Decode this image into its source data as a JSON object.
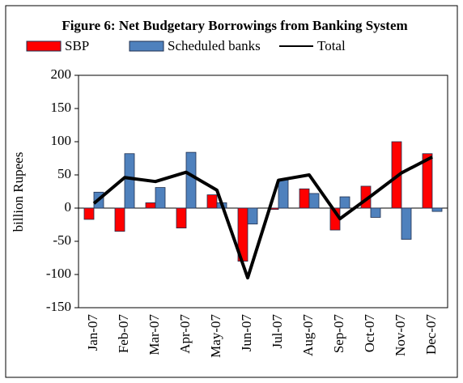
{
  "chart_data": {
    "type": "bar",
    "title": "Figure 6: Net Budgetary Borrowings from Banking System",
    "y_label": "billion Rupees",
    "categories": [
      "Jan-07",
      "Feb-07",
      "Mar-07",
      "Apr-07",
      "May-07",
      "Jun-07",
      "Jul-07",
      "Aug-07",
      "Sep-07",
      "Oct-07",
      "Nov-07",
      "Dec-07"
    ],
    "series": [
      {
        "name": "SBP",
        "type": "bar",
        "color": "#ff0000",
        "values": [
          -17,
          -35,
          8,
          -30,
          20,
          -80,
          -2,
          29,
          -33,
          33,
          100,
          82
        ]
      },
      {
        "name": "Scheduled banks",
        "type": "bar",
        "color": "#4f81bd",
        "values": [
          24,
          82,
          31,
          84,
          8,
          -24,
          43,
          22,
          17,
          -14,
          -47,
          -5
        ]
      },
      {
        "name": "Total",
        "type": "line",
        "color": "#000000",
        "values": [
          7,
          46,
          40,
          54,
          27,
          -105,
          42,
          50,
          -16,
          18,
          53,
          77
        ]
      }
    ],
    "ylim": [
      -150,
      200
    ],
    "yticks": [
      -150,
      -100,
      -50,
      0,
      50,
      100,
      150,
      200
    ],
    "grid": false,
    "legend": "top"
  }
}
